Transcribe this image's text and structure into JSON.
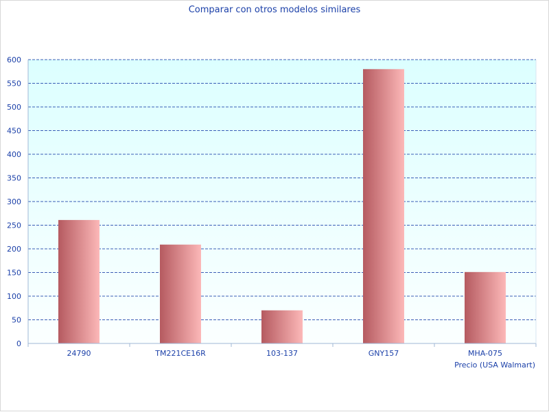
{
  "chart_data": {
    "type": "bar",
    "title": "Comparar con otros modelos similares",
    "xlabel": "Precio (USA Walmart)",
    "ylabel": "",
    "categories": [
      "24790",
      "TM221CE16R",
      "103-137",
      "GNY157",
      "MHA-075"
    ],
    "values": [
      261,
      209,
      70,
      580,
      151
    ],
    "ylim": [
      0,
      600
    ],
    "yticks": [
      "0",
      "50",
      "100",
      "150",
      "200",
      "250",
      "300",
      "350",
      "400",
      "450",
      "500",
      "550",
      "600"
    ],
    "grid": true,
    "legend": "none",
    "colors": {
      "bar_dark": "#b55a60",
      "bar_light": "#fcb8b8",
      "plot_bg_top": "#dcffff",
      "plot_bg_bottom": "#fbffff",
      "grid": "#1a3fa8",
      "text": "#1a3fa8",
      "axis": "#9fb7d6"
    }
  }
}
